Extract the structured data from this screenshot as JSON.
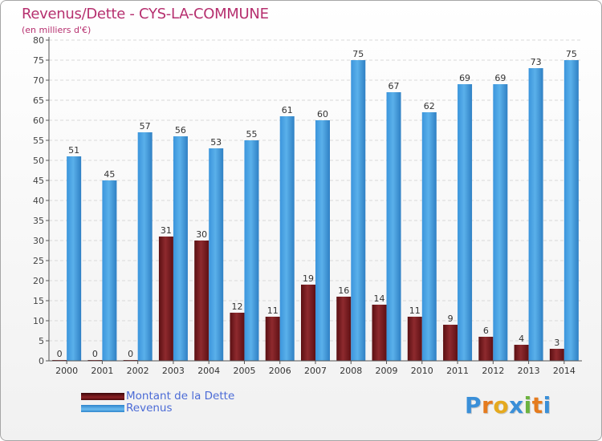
{
  "title": "Revenus/Dette - CYS-LA-COMMUNE",
  "subtitle": "(en milliers d'€)",
  "chart_data": {
    "type": "bar",
    "title": "Revenus/Dette - CYS-LA-COMMUNE",
    "ylabel": "(en milliers d'€)",
    "xlabel": "",
    "ylim": [
      0,
      80
    ],
    "yticks": [
      0,
      5,
      10,
      15,
      20,
      25,
      30,
      35,
      40,
      45,
      50,
      55,
      60,
      65,
      70,
      75,
      80
    ],
    "grid": true,
    "categories": [
      "2000",
      "2001",
      "2002",
      "2003",
      "2004",
      "2005",
      "2006",
      "2007",
      "2008",
      "2009",
      "2010",
      "2011",
      "2012",
      "2013",
      "2014"
    ],
    "series": [
      {
        "name": "Montant de la Dette",
        "color": "#7a1e22",
        "values": [
          0,
          0,
          0,
          31,
          30,
          12,
          11,
          19,
          16,
          14,
          11,
          9,
          6,
          4,
          3
        ]
      },
      {
        "name": "Revenus",
        "color": "#3d97de",
        "values": [
          51,
          45,
          57,
          56,
          53,
          55,
          61,
          60,
          75,
          67,
          62,
          69,
          69,
          73,
          75
        ]
      }
    ],
    "legend": "bottom-left"
  },
  "legend": {
    "items": [
      {
        "label": "Montant de la Dette",
        "color": "#6b1416"
      },
      {
        "label": "Revenus",
        "color": "#3d97de"
      }
    ]
  },
  "logo": {
    "letters": [
      "P",
      "r",
      "o",
      "x",
      "i",
      "t",
      "i"
    ],
    "colors": [
      "#3a8fd8",
      "#e57b1e",
      "#e5a91e",
      "#3a8fd8",
      "#6db33f",
      "#e57b1e",
      "#3a8fd8"
    ]
  }
}
